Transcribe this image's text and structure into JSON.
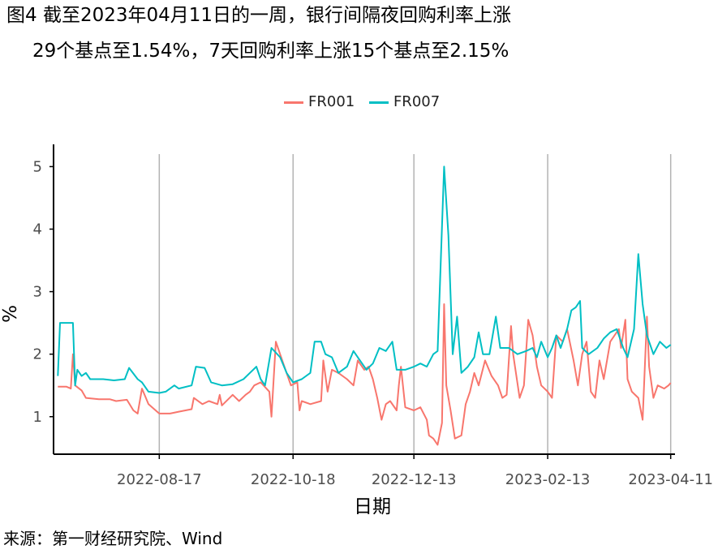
{
  "title_line1": "图4  截至2023年04月11日的一周，银行间隔夜回购利率上涨",
  "title_line2": "29个基点至1.54%，7天回购利率上涨15个基点至2.15%",
  "source": "来源：第一财经研究院、Wind",
  "chart_data": {
    "type": "line",
    "title": "图4  截至2023年04月11日的一周，银行间隔夜回购利率上涨29个基点至1.54%，7天回购利率上涨15个基点至2.15%",
    "xlabel": "日期",
    "ylabel": "%",
    "ylim": [
      0.4,
      5.2
    ],
    "yticks": [
      1,
      2,
      3,
      4,
      5
    ],
    "xlim": [
      "2022-06-29",
      "2023-04-13"
    ],
    "xticks": [
      "2022-08-17",
      "2022-10-18",
      "2022-12-13",
      "2023-02-13",
      "2023-04-11"
    ],
    "grid": "vertical",
    "legend_position": "top",
    "series": [
      {
        "name": "FR001",
        "color": "#F8766D",
        "points": [
          [
            "2022-07-01",
            1.48
          ],
          [
            "2022-07-05",
            1.48
          ],
          [
            "2022-07-07",
            1.45
          ],
          [
            "2022-07-08",
            2.0
          ],
          [
            "2022-07-09",
            1.5
          ],
          [
            "2022-07-12",
            1.42
          ],
          [
            "2022-07-14",
            1.3
          ],
          [
            "2022-07-20",
            1.28
          ],
          [
            "2022-07-25",
            1.28
          ],
          [
            "2022-07-28",
            1.25
          ],
          [
            "2022-08-02",
            1.27
          ],
          [
            "2022-08-05",
            1.1
          ],
          [
            "2022-08-07",
            1.05
          ],
          [
            "2022-08-09",
            1.45
          ],
          [
            "2022-08-12",
            1.2
          ],
          [
            "2022-08-17",
            1.05
          ],
          [
            "2022-08-22",
            1.05
          ],
          [
            "2022-08-26",
            1.08
          ],
          [
            "2022-09-01",
            1.12
          ],
          [
            "2022-09-02",
            1.3
          ],
          [
            "2022-09-06",
            1.2
          ],
          [
            "2022-09-09",
            1.25
          ],
          [
            "2022-09-13",
            1.2
          ],
          [
            "2022-09-14",
            1.35
          ],
          [
            "2022-09-15",
            1.18
          ],
          [
            "2022-09-20",
            1.35
          ],
          [
            "2022-09-23",
            1.25
          ],
          [
            "2022-09-26",
            1.35
          ],
          [
            "2022-09-28",
            1.4
          ],
          [
            "2022-09-30",
            1.5
          ],
          [
            "2022-10-03",
            1.55
          ],
          [
            "2022-10-07",
            1.4
          ],
          [
            "2022-10-08",
            1.0
          ],
          [
            "2022-10-10",
            2.2
          ],
          [
            "2022-10-13",
            1.9
          ],
          [
            "2022-10-17",
            1.5
          ],
          [
            "2022-10-20",
            1.55
          ],
          [
            "2022-10-21",
            1.1
          ],
          [
            "2022-10-22",
            1.25
          ],
          [
            "2022-10-26",
            1.2
          ],
          [
            "2022-10-31",
            1.25
          ],
          [
            "2022-11-01",
            1.9
          ],
          [
            "2022-11-03",
            1.4
          ],
          [
            "2022-11-05",
            1.75
          ],
          [
            "2022-11-08",
            1.7
          ],
          [
            "2022-11-12",
            1.6
          ],
          [
            "2022-11-15",
            1.5
          ],
          [
            "2022-11-17",
            1.9
          ],
          [
            "2022-11-20",
            1.75
          ],
          [
            "2022-11-22",
            1.8
          ],
          [
            "2022-11-24",
            1.6
          ],
          [
            "2022-11-26",
            1.3
          ],
          [
            "2022-11-28",
            0.95
          ],
          [
            "2022-11-30",
            1.2
          ],
          [
            "2022-12-02",
            1.25
          ],
          [
            "2022-12-05",
            1.1
          ],
          [
            "2022-12-06",
            1.5
          ],
          [
            "2022-12-07",
            1.8
          ],
          [
            "2022-12-09",
            1.15
          ],
          [
            "2022-12-13",
            1.1
          ],
          [
            "2022-12-16",
            1.15
          ],
          [
            "2022-12-19",
            0.95
          ],
          [
            "2022-12-20",
            0.7
          ],
          [
            "2022-12-22",
            0.65
          ],
          [
            "2022-12-24",
            0.55
          ],
          [
            "2022-12-26",
            0.9
          ],
          [
            "2022-12-27",
            2.8
          ],
          [
            "2022-12-28",
            1.5
          ],
          [
            "2022-12-30",
            1.1
          ],
          [
            "2023-01-01",
            0.65
          ],
          [
            "2023-01-04",
            0.7
          ],
          [
            "2023-01-06",
            1.2
          ],
          [
            "2023-01-08",
            1.4
          ],
          [
            "2023-01-10",
            1.7
          ],
          [
            "2023-01-12",
            1.5
          ],
          [
            "2023-01-15",
            1.9
          ],
          [
            "2023-01-18",
            1.65
          ],
          [
            "2023-01-21",
            1.5
          ],
          [
            "2023-01-23",
            1.3
          ],
          [
            "2023-01-25",
            1.35
          ],
          [
            "2023-01-27",
            2.45
          ],
          [
            "2023-01-28",
            2.0
          ],
          [
            "2023-01-31",
            1.3
          ],
          [
            "2023-02-02",
            1.5
          ],
          [
            "2023-02-04",
            2.55
          ],
          [
            "2023-02-06",
            2.3
          ],
          [
            "2023-02-08",
            1.8
          ],
          [
            "2023-02-10",
            1.5
          ],
          [
            "2023-02-13",
            1.4
          ],
          [
            "2023-02-15",
            1.3
          ],
          [
            "2023-02-17",
            2.3
          ],
          [
            "2023-02-20",
            2.2
          ],
          [
            "2023-02-22",
            2.4
          ],
          [
            "2023-02-25",
            1.9
          ],
          [
            "2023-02-27",
            1.5
          ],
          [
            "2023-03-01",
            2.0
          ],
          [
            "2023-03-03",
            2.2
          ],
          [
            "2023-03-05",
            1.4
          ],
          [
            "2023-03-07",
            1.3
          ],
          [
            "2023-03-09",
            1.9
          ],
          [
            "2023-03-11",
            1.6
          ],
          [
            "2023-03-14",
            2.2
          ],
          [
            "2023-03-16",
            2.3
          ],
          [
            "2023-03-18",
            2.4
          ],
          [
            "2023-03-19",
            2.1
          ],
          [
            "2023-03-21",
            2.55
          ],
          [
            "2023-03-22",
            1.6
          ],
          [
            "2023-03-24",
            1.4
          ],
          [
            "2023-03-27",
            1.3
          ],
          [
            "2023-03-29",
            0.95
          ],
          [
            "2023-03-31",
            2.6
          ],
          [
            "2023-04-01",
            1.8
          ],
          [
            "2023-04-03",
            1.3
          ],
          [
            "2023-04-05",
            1.5
          ],
          [
            "2023-04-08",
            1.45
          ],
          [
            "2023-04-10",
            1.5
          ],
          [
            "2023-04-11",
            1.54
          ]
        ]
      },
      {
        "name": "FR007",
        "color": "#00BFC4",
        "points": [
          [
            "2022-07-01",
            1.65
          ],
          [
            "2022-07-02",
            2.5
          ],
          [
            "2022-07-04",
            2.5
          ],
          [
            "2022-07-08",
            2.5
          ],
          [
            "2022-07-09",
            1.5
          ],
          [
            "2022-07-10",
            1.75
          ],
          [
            "2022-07-12",
            1.65
          ],
          [
            "2022-07-14",
            1.7
          ],
          [
            "2022-07-16",
            1.6
          ],
          [
            "2022-07-22",
            1.6
          ],
          [
            "2022-07-27",
            1.58
          ],
          [
            "2022-08-01",
            1.6
          ],
          [
            "2022-08-03",
            1.78
          ],
          [
            "2022-08-07",
            1.6
          ],
          [
            "2022-08-09",
            1.55
          ],
          [
            "2022-08-12",
            1.4
          ],
          [
            "2022-08-17",
            1.38
          ],
          [
            "2022-08-20",
            1.4
          ],
          [
            "2022-08-24",
            1.5
          ],
          [
            "2022-08-26",
            1.45
          ],
          [
            "2022-09-01",
            1.5
          ],
          [
            "2022-09-03",
            1.8
          ],
          [
            "2022-09-07",
            1.78
          ],
          [
            "2022-09-10",
            1.55
          ],
          [
            "2022-09-15",
            1.5
          ],
          [
            "2022-09-20",
            1.52
          ],
          [
            "2022-09-25",
            1.6
          ],
          [
            "2022-09-28",
            1.7
          ],
          [
            "2022-10-01",
            1.8
          ],
          [
            "2022-10-03",
            1.6
          ],
          [
            "2022-10-05",
            1.5
          ],
          [
            "2022-10-08",
            2.1
          ],
          [
            "2022-10-12",
            1.95
          ],
          [
            "2022-10-15",
            1.7
          ],
          [
            "2022-10-18",
            1.55
          ],
          [
            "2022-10-22",
            1.6
          ],
          [
            "2022-10-26",
            1.7
          ],
          [
            "2022-10-28",
            2.2
          ],
          [
            "2022-10-31",
            2.2
          ],
          [
            "2022-11-02",
            2.0
          ],
          [
            "2022-11-05",
            1.95
          ],
          [
            "2022-11-08",
            1.7
          ],
          [
            "2022-11-12",
            1.8
          ],
          [
            "2022-11-15",
            2.05
          ],
          [
            "2022-11-18",
            1.9
          ],
          [
            "2022-11-21",
            1.75
          ],
          [
            "2022-11-24",
            1.85
          ],
          [
            "2022-11-27",
            2.1
          ],
          [
            "2022-11-30",
            2.05
          ],
          [
            "2022-12-03",
            2.2
          ],
          [
            "2022-12-05",
            1.75
          ],
          [
            "2022-12-09",
            1.75
          ],
          [
            "2022-12-13",
            1.8
          ],
          [
            "2022-12-16",
            1.85
          ],
          [
            "2022-12-19",
            1.8
          ],
          [
            "2022-12-22",
            2.0
          ],
          [
            "2022-12-24",
            2.05
          ],
          [
            "2022-12-27",
            5.0
          ],
          [
            "2022-12-29",
            3.9
          ],
          [
            "2022-12-31",
            2.0
          ],
          [
            "2023-01-02",
            2.6
          ],
          [
            "2023-01-04",
            1.7
          ],
          [
            "2023-01-07",
            1.8
          ],
          [
            "2023-01-10",
            1.95
          ],
          [
            "2023-01-12",
            2.35
          ],
          [
            "2023-01-14",
            2.0
          ],
          [
            "2023-01-17",
            2.0
          ],
          [
            "2023-01-20",
            2.6
          ],
          [
            "2023-01-22",
            2.1
          ],
          [
            "2023-01-26",
            2.1
          ],
          [
            "2023-01-30",
            2.0
          ],
          [
            "2023-02-03",
            2.05
          ],
          [
            "2023-02-06",
            2.1
          ],
          [
            "2023-02-08",
            1.95
          ],
          [
            "2023-02-10",
            2.2
          ],
          [
            "2023-02-13",
            1.95
          ],
          [
            "2023-02-15",
            2.1
          ],
          [
            "2023-02-17",
            2.3
          ],
          [
            "2023-02-19",
            2.1
          ],
          [
            "2023-02-22",
            2.4
          ],
          [
            "2023-02-24",
            2.7
          ],
          [
            "2023-02-26",
            2.75
          ],
          [
            "2023-02-28",
            2.85
          ],
          [
            "2023-03-01",
            2.1
          ],
          [
            "2023-03-04",
            2.0
          ],
          [
            "2023-03-08",
            2.1
          ],
          [
            "2023-03-11",
            2.25
          ],
          [
            "2023-03-14",
            2.35
          ],
          [
            "2023-03-17",
            2.4
          ],
          [
            "2023-03-20",
            2.1
          ],
          [
            "2023-03-22",
            1.95
          ],
          [
            "2023-03-25",
            2.4
          ],
          [
            "2023-03-27",
            3.6
          ],
          [
            "2023-03-29",
            2.8
          ],
          [
            "2023-03-31",
            2.3
          ],
          [
            "2023-04-03",
            2.0
          ],
          [
            "2023-04-06",
            2.2
          ],
          [
            "2023-04-09",
            2.1
          ],
          [
            "2023-04-11",
            2.15
          ]
        ]
      }
    ]
  }
}
